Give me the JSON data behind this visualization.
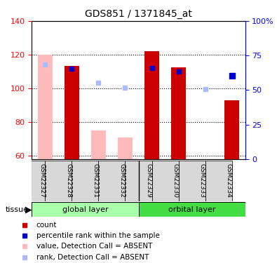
{
  "title": "GDS851 / 1371845_at",
  "samples": [
    "GSM22327",
    "GSM22328",
    "GSM22331",
    "GSM22332",
    "GSM22329",
    "GSM22330",
    "GSM22333",
    "GSM22334"
  ],
  "count_present": [
    null,
    113.5,
    null,
    null,
    122.0,
    112.5,
    null,
    93.0
  ],
  "count_absent": [
    120.0,
    null,
    75.0,
    71.0,
    null,
    null,
    null,
    null
  ],
  "rank_present": [
    null,
    111.5,
    null,
    null,
    112.0,
    110.0,
    null,
    null
  ],
  "rank_absent": [
    114.0,
    null,
    103.5,
    100.5,
    null,
    null,
    99.5,
    null
  ],
  "rank_present2": [
    null,
    null,
    null,
    null,
    null,
    null,
    null,
    107.5
  ],
  "ylim_left": [
    58,
    140
  ],
  "ylim_right": [
    0,
    100
  ],
  "yticks_left": [
    60,
    80,
    100,
    120,
    140
  ],
  "yticks_right": [
    0,
    25,
    50,
    75,
    100
  ],
  "yticklabels_right": [
    "0",
    "25",
    "50",
    "75",
    "100%"
  ],
  "bar_width": 0.55,
  "group1_label": "global layer",
  "group2_label": "orbital layer",
  "group_label": "tissue",
  "group1_color": "#aaffaa",
  "group2_color": "#44dd44",
  "colors": {
    "count_present": "#cc0000",
    "count_absent": "#ffbbbb",
    "rank_present": "#0000cc",
    "rank_absent": "#aabbff",
    "rank_present2": "#0000cc"
  },
  "legend": [
    {
      "label": "count",
      "color": "#cc0000",
      "size": 5
    },
    {
      "label": "percentile rank within the sample",
      "color": "#0000cc",
      "size": 5
    },
    {
      "label": "value, Detection Call = ABSENT",
      "color": "#ffbbbb",
      "size": 5
    },
    {
      "label": "rank, Detection Call = ABSENT",
      "color": "#aabbff",
      "size": 5
    }
  ]
}
